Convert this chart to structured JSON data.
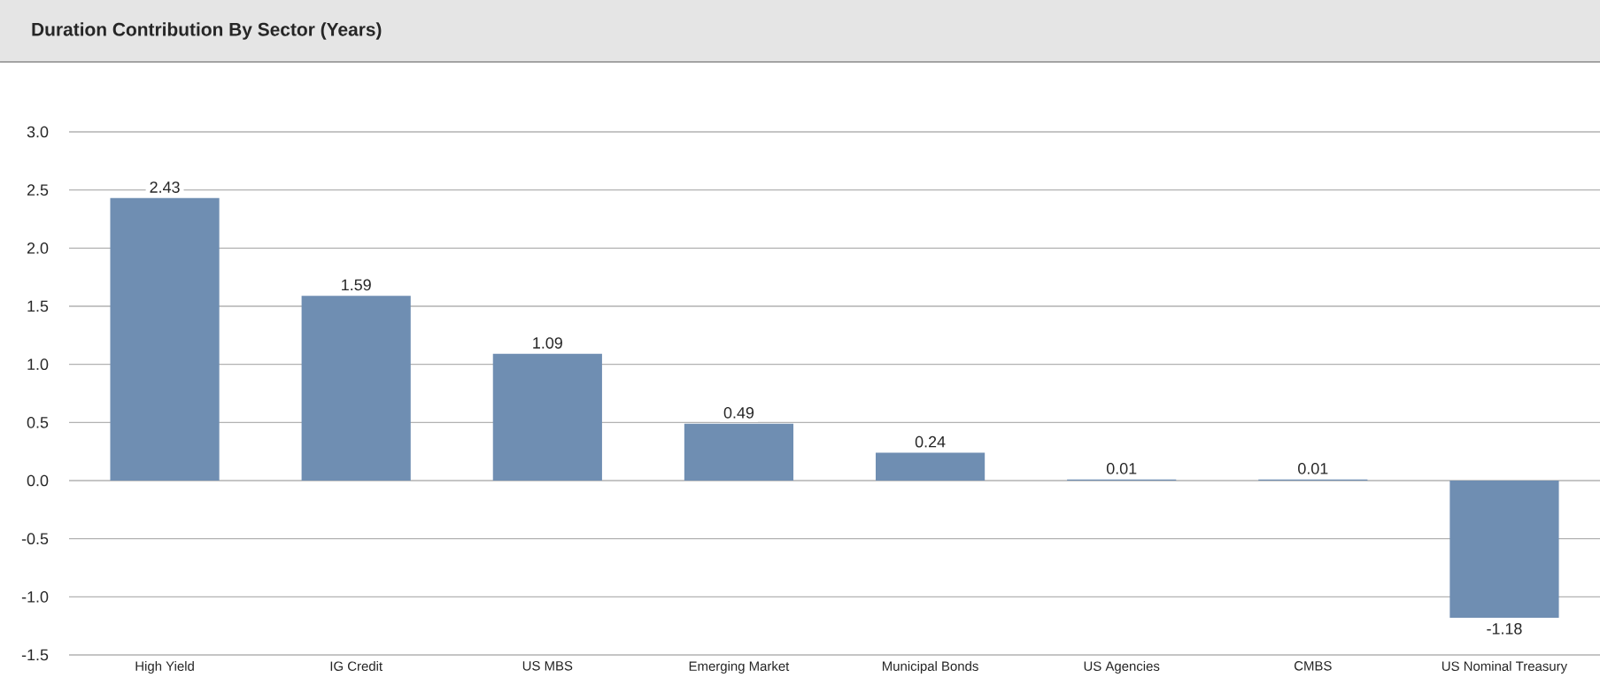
{
  "chart_data": {
    "type": "bar",
    "title": "Duration Contribution By Sector (Years)",
    "categories": [
      "High Yield",
      "IG Credit",
      "US MBS",
      "Emerging Market",
      "Municipal Bonds",
      "US Agencies",
      "CMBS",
      "US Nominal Treasury"
    ],
    "values": [
      2.43,
      1.59,
      1.09,
      0.49,
      0.24,
      0.01,
      0.01,
      -1.18
    ],
    "color": "#6f8eb2",
    "ylim": [
      -1.5,
      3.0
    ],
    "yticks": [
      {
        "value": -1.5,
        "label": "-1.5"
      },
      {
        "value": -1.0,
        "label": "-1.0"
      },
      {
        "value": -0.5,
        "label": "-0.5"
      },
      {
        "value": 0,
        "label": "0.0"
      },
      {
        "value": 0.5,
        "label": "0.5"
      },
      {
        "value": 1.0,
        "label": "1.0"
      },
      {
        "value": 1.5,
        "label": "1.5"
      },
      {
        "value": 2.0,
        "label": "2.0"
      },
      {
        "value": 2.5,
        "label": "2.5"
      },
      {
        "value": 3.0,
        "label": "3.0"
      }
    ],
    "grid": "y",
    "data_labels": true
  }
}
